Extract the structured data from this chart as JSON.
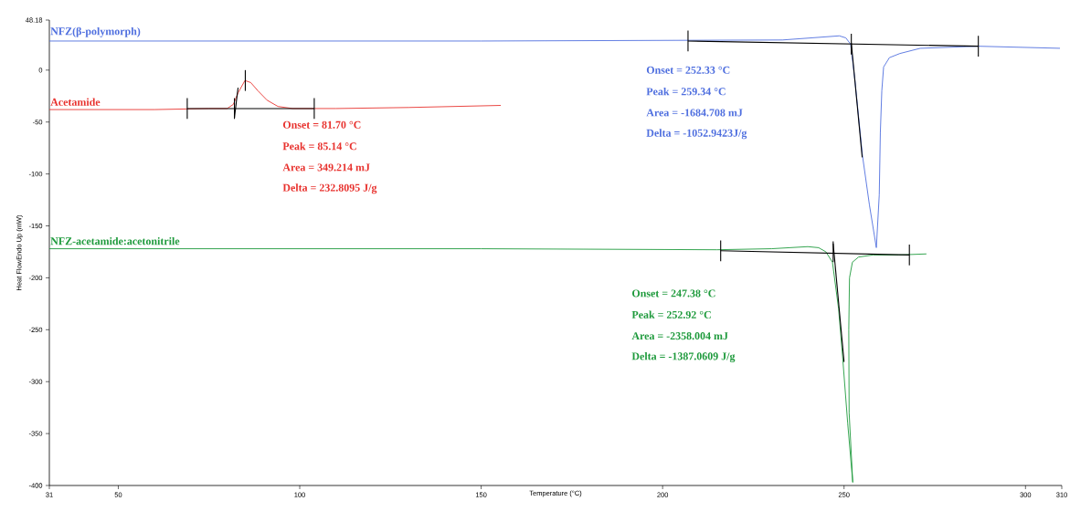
{
  "chart_data": {
    "type": "line",
    "xlabel": "Temperature (°C)",
    "ylabel": "Heat FlowEndo Up (mW)",
    "xlim": [
      31,
      310
    ],
    "ylim": [
      -400,
      48.18
    ],
    "xticks": [
      31,
      50,
      100,
      150,
      200,
      250,
      300,
      310
    ],
    "yticks": [
      -400,
      -350,
      -300,
      -250,
      -200,
      -150,
      -100,
      -50,
      0,
      48.18
    ],
    "series": [
      {
        "name": "NFZ(β-polymorph)",
        "color": "#4f6fdf",
        "x": [
          31,
          150,
          233,
          248.7,
          250.5,
          251.8,
          253,
          255.1,
          257,
          258.9,
          259.7,
          260,
          260.4,
          260.9,
          262.5,
          265.4,
          271,
          287,
          309.5
        ],
        "values": [
          28,
          28,
          29,
          33,
          31,
          25,
          -10,
          -83,
          -130,
          -171,
          -120,
          -60,
          -20,
          3,
          12,
          16,
          21,
          23,
          21
        ]
      },
      {
        "name": "Acetamide",
        "color": "#e8322e",
        "x": [
          31,
          60,
          75,
          80,
          81.7,
          83,
          84.9,
          86.5,
          88.5,
          91,
          94,
          98,
          110,
          130,
          155.4
        ],
        "values": [
          -38,
          -38,
          -37,
          -37,
          -33,
          -22,
          -10,
          -12,
          -20,
          -29,
          -35,
          -37,
          -37,
          -36,
          -34
        ]
      },
      {
        "name": "NFZ-acetamide:acetonitrile",
        "color": "#1e9a3c",
        "x": [
          31,
          150,
          215,
          230,
          240,
          243,
          245,
          246.8,
          248.5,
          249.6,
          251,
          252.4,
          251.4,
          251.3,
          251.5,
          252.3,
          254,
          258,
          265,
          272.7
        ],
        "values": [
          -172,
          -172,
          -173,
          -172,
          -170,
          -171,
          -175,
          -185,
          -230,
          -276,
          -340,
          -397,
          -330,
          -250,
          -200,
          -185,
          -180,
          -178,
          -178,
          -177
        ]
      },
      {
        "color": "#000000",
        "x": [
          69,
          69
        ],
        "values": [
          -27,
          -47
        ]
      },
      {
        "color": "#000000",
        "x": [
          69,
          104
        ],
        "values": [
          -37,
          -37
        ]
      },
      {
        "color": "#000000",
        "x": [
          104,
          104
        ],
        "values": [
          -27,
          -47
        ]
      },
      {
        "color": "#000000",
        "x": [
          82,
          82
        ],
        "values": [
          -27,
          -47
        ]
      },
      {
        "color": "#000000",
        "x": [
          85,
          85
        ],
        "values": [
          0,
          -20
        ]
      },
      {
        "color": "#000000",
        "x": [
          82,
          83
        ],
        "values": [
          -46,
          -17
        ]
      },
      {
        "color": "#000000",
        "x": [
          207,
          207
        ],
        "values": [
          38,
          18
        ]
      },
      {
        "color": "#000000",
        "x": [
          207,
          287
        ],
        "values": [
          28,
          23
        ]
      },
      {
        "color": "#000000",
        "x": [
          252,
          252
        ],
        "values": [
          35,
          15
        ]
      },
      {
        "color": "#000000",
        "x": [
          287,
          287
        ],
        "values": [
          33,
          13
        ]
      },
      {
        "color": "#000000",
        "x": [
          252,
          255
        ],
        "values": [
          26,
          -84
        ]
      },
      {
        "color": "#000000",
        "x": [
          216,
          216
        ],
        "values": [
          -164,
          -184
        ]
      },
      {
        "color": "#000000",
        "x": [
          216,
          268
        ],
        "values": [
          -174,
          -178
        ]
      },
      {
        "color": "#000000",
        "x": [
          247,
          247
        ],
        "values": [
          -165,
          -185
        ]
      },
      {
        "color": "#000000",
        "x": [
          268,
          268
        ],
        "values": [
          -168,
          -188
        ]
      },
      {
        "color": "#000000",
        "x": [
          247,
          250
        ],
        "values": [
          -167,
          -281
        ]
      }
    ],
    "annotations": [
      "Onset = 252.33 °C",
      "Peak = 259.34 °C",
      "Area = -1684.708 mJ",
      "Delta = -1052.9423J/g",
      "Onset = 81.70 °C",
      "Peak = 85.14 °C",
      "Area = 349.214 mJ",
      "Delta = 232.8095 J/g",
      "Onset = 247.38 °C",
      "Peak = 252.92 °C",
      "Area = -2358.004 mJ",
      "Delta = -1387.0609 J/g"
    ]
  }
}
